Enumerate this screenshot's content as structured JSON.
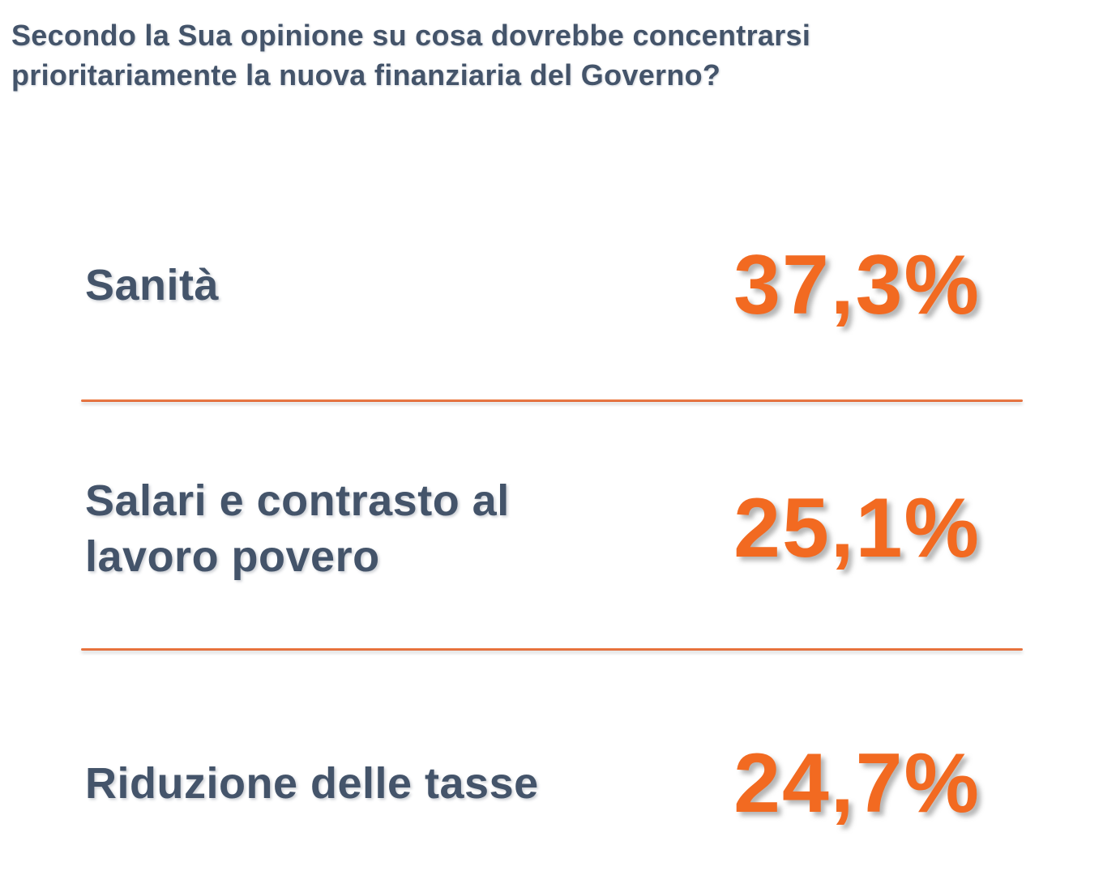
{
  "title": {
    "line1": "Secondo la Sua opinione su cosa dovrebbe concentrarsi",
    "line2": "prioritariamente la nuova finanziaria del Governo?"
  },
  "items": [
    {
      "label": "Sanità",
      "value": "37,3%"
    },
    {
      "label": "Salari e contrasto al lavoro povero",
      "value": "25,1%"
    },
    {
      "label": "Riduzione delle tasse",
      "value": "24,7%"
    }
  ],
  "colors": {
    "heading_text": "#44546A",
    "value_text": "#F26A21",
    "divider": "#DC5C2A",
    "background": "#FFFFFF"
  },
  "chart_data": {
    "type": "table",
    "title": "Secondo la Sua opinione su cosa dovrebbe concentrarsi prioritariamente la nuova finanziaria del Governo?",
    "categories": [
      "Sanità",
      "Salari e contrasto al lavoro povero",
      "Riduzione delle tasse"
    ],
    "values": [
      37.3,
      25.1,
      24.7
    ],
    "value_labels": [
      "37,3%",
      "25,1%",
      "24,7%"
    ],
    "unit": "%",
    "value_color": "#F26A21",
    "label_color": "#44546A",
    "layout": "stacked-list-with-dividers"
  }
}
